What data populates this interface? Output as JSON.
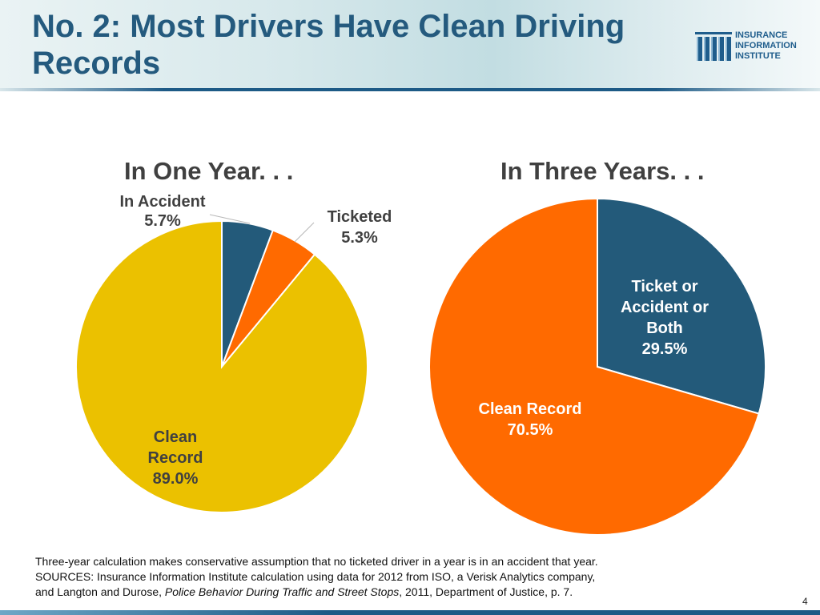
{
  "slide": {
    "title_line1": "No. 2: Most Drivers Have Clean Driving",
    "title_line2": "Records",
    "page_number": "4"
  },
  "logo": {
    "line1": "INSURANCE",
    "line2": "INFORMATION",
    "line3": "INSTITUTE",
    "color": "#1f5d8c"
  },
  "colors": {
    "navy": "#235a7a",
    "orange": "#ff6a00",
    "gold": "#ebc100",
    "label_dark": "#404040",
    "label_white": "#ffffff",
    "label_orange_text": "#d85a00"
  },
  "chart_data": [
    {
      "type": "pie",
      "title": "In One Year. . .",
      "slices": [
        {
          "label_lines": [
            "In Accident",
            "5.7%"
          ],
          "value": 5.7,
          "color": "#235a7a"
        },
        {
          "label_lines": [
            "Ticketed",
            "5.3%"
          ],
          "value": 5.3,
          "color": "#ff6a00"
        },
        {
          "label_lines": [
            "Clean",
            "Record",
            "89.0%"
          ],
          "value": 89.0,
          "color": "#ebc100"
        }
      ],
      "start_angle_deg": 0,
      "direction": "clockwise"
    },
    {
      "type": "pie",
      "title": "In Three Years. . .",
      "slices": [
        {
          "label_lines": [
            "Ticket or",
            "Accident or",
            "Both",
            "29.5%"
          ],
          "value": 29.5,
          "color": "#235a7a"
        },
        {
          "label_lines": [
            "Clean Record",
            "70.5%"
          ],
          "value": 70.5,
          "color": "#ff6a00"
        }
      ],
      "start_angle_deg": 0,
      "direction": "clockwise"
    }
  ],
  "footnote": {
    "line1": "Three-year calculation makes conservative assumption that no ticketed driver in a year is in an accident that year.",
    "line2": "SOURCES: Insurance Information Institute calculation using data for 2012 from ISO, a Verisk Analytics company,",
    "line3_prefix": "and Langton and Durose, ",
    "line3_italic": "Police Behavior During Traffic and Street Stops",
    "line3_suffix": ", 2011, Department of Justice, p. 7."
  }
}
